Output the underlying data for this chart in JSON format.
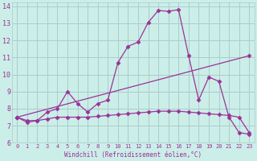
{
  "xlabel": "Windchill (Refroidissement éolien,°C)",
  "ylabel": "",
  "background_color": "#cceee8",
  "grid_color": "#aacccc",
  "line_color": "#993399",
  "xlim": [
    -0.5,
    23.5
  ],
  "ylim": [
    6,
    14.2
  ],
  "xticks": [
    0,
    1,
    2,
    3,
    4,
    5,
    6,
    7,
    8,
    9,
    10,
    11,
    12,
    13,
    14,
    15,
    16,
    17,
    18,
    19,
    20,
    21,
    22,
    23
  ],
  "yticks": [
    6,
    7,
    8,
    9,
    10,
    11,
    12,
    13,
    14
  ],
  "curve1_x": [
    0,
    1,
    2,
    3,
    4,
    5,
    6,
    7,
    8,
    9,
    10,
    11,
    12,
    13,
    14,
    15,
    16,
    17,
    18,
    19,
    20,
    21,
    22,
    23
  ],
  "curve1_y": [
    7.5,
    7.2,
    7.3,
    7.8,
    8.0,
    9.0,
    8.3,
    7.8,
    8.3,
    8.5,
    10.7,
    11.65,
    11.9,
    13.05,
    13.75,
    13.7,
    13.8,
    11.1,
    8.5,
    9.85,
    9.6,
    7.5,
    6.6,
    6.5
  ],
  "curve2_x": [
    0,
    23
  ],
  "curve2_y": [
    7.5,
    11.1
  ],
  "curve3_x": [
    0,
    1,
    2,
    3,
    4,
    5,
    6,
    7,
    8,
    9,
    10,
    11,
    12,
    13,
    14,
    15,
    16,
    17,
    18,
    19,
    20,
    21,
    22,
    23
  ],
  "curve3_y": [
    7.5,
    7.3,
    7.3,
    7.4,
    7.5,
    7.5,
    7.5,
    7.5,
    7.55,
    7.6,
    7.65,
    7.7,
    7.75,
    7.8,
    7.85,
    7.85,
    7.85,
    7.8,
    7.75,
    7.7,
    7.65,
    7.6,
    7.5,
    6.6
  ]
}
